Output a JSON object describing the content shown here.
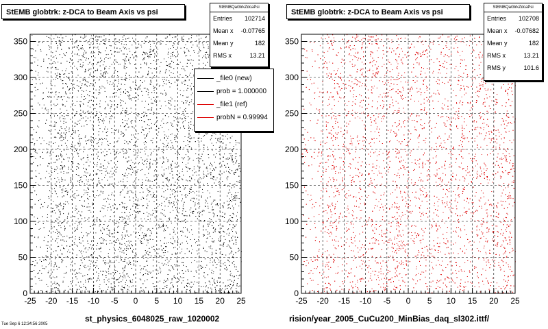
{
  "colors": {
    "new": "#000000",
    "ref": "#dd0000",
    "background": "#ffffff"
  },
  "left": {
    "title": "StEMB globtrk: z-DCA to Beam Axis vs psi",
    "stats_name": "StEMBQaGlrkZdcaPsi",
    "stats": [
      {
        "label": "Entries",
        "value": "102714"
      },
      {
        "label": "Mean x",
        "value": "-0.07765"
      },
      {
        "label": "Mean y",
        "value": "182"
      },
      {
        "label": "RMS x",
        "value": "13.21"
      }
    ],
    "legend": [
      {
        "label": "_file0 (new)",
        "color": "#000000"
      },
      {
        "label": "prob = 1.000000",
        "color": "#000000"
      },
      {
        "label": "_file1 (ref)",
        "color": "#dd0000"
      },
      {
        "label": "probN = 0.99994",
        "color": "#dd0000"
      }
    ],
    "xfooter": "st_physics_6048025_raw_1020002",
    "tiny_footer": "Tue Sep  6 12:34:56 2005"
  },
  "right": {
    "title": "StEMB globtrk: z-DCA to Beam Axis vs psi",
    "stats_name": "StEMBQaGlrkZdcaPsi",
    "stats": [
      {
        "label": "Entries",
        "value": "102708"
      },
      {
        "label": "Mean x",
        "value": "-0.07682"
      },
      {
        "label": "Mean y",
        "value": "182"
      },
      {
        "label": "RMS x",
        "value": "13.21"
      },
      {
        "label": "RMS y",
        "value": "101.6"
      }
    ],
    "xfooter": "rision/year_2005_CuCu200_MinBias_daq_sl302.ittf/"
  },
  "chart_data": [
    {
      "type": "scatter",
      "title": "StEMB globtrk: z-DCA to Beam Axis vs psi",
      "series": [
        {
          "name": "_file0 (new)",
          "color": "#000000"
        }
      ],
      "xlim": [
        -25,
        25
      ],
      "ylim": [
        0,
        360
      ],
      "xticks": [
        -25,
        -20,
        -15,
        -10,
        -5,
        0,
        5,
        10,
        15,
        20,
        25
      ],
      "yticks": [
        0,
        50,
        100,
        150,
        200,
        250,
        300,
        350
      ],
      "grid": true,
      "entries": 102714,
      "mean_x": -0.07765,
      "mean_y": 182,
      "rms_x": 13.21
    },
    {
      "type": "scatter",
      "title": "StEMB globtrk: z-DCA to Beam Axis vs psi",
      "series": [
        {
          "name": "_file1 (ref)",
          "color": "#dd0000"
        }
      ],
      "xlim": [
        -25,
        25
      ],
      "ylim": [
        0,
        360
      ],
      "xticks": [
        -25,
        -20,
        -15,
        -10,
        -5,
        0,
        5,
        10,
        15,
        20,
        25
      ],
      "yticks": [
        0,
        50,
        100,
        150,
        200,
        250,
        300,
        350
      ],
      "grid": true,
      "entries": 102708,
      "mean_x": -0.07682,
      "mean_y": 182,
      "rms_x": 13.21,
      "rms_y": 101.6
    }
  ]
}
